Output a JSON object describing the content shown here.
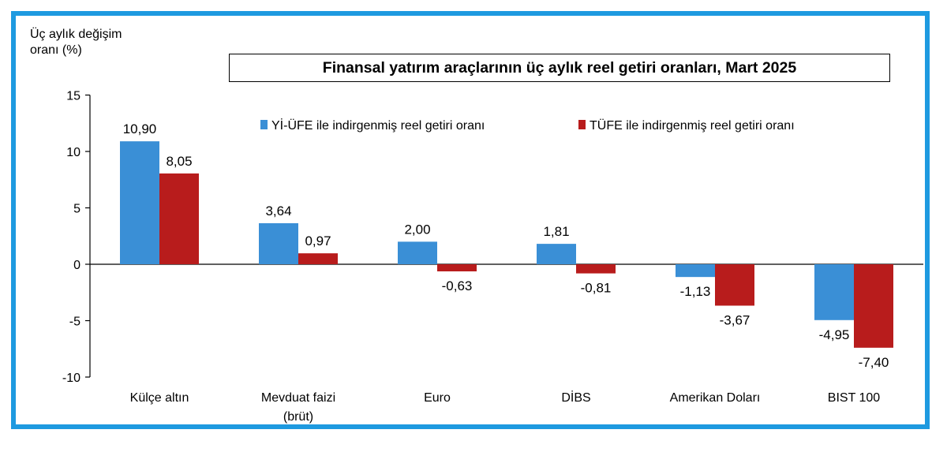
{
  "chart_data": {
    "type": "bar",
    "title": "Finansal yatırım araçlarının üç aylık reel getiri oranları, Mart 2025",
    "ylabel": "Üç aylık değişim\noranı (%)",
    "xlabel": "",
    "ylim": [
      -10,
      15
    ],
    "yticks": [
      15,
      10,
      5,
      0,
      -5,
      -10
    ],
    "grid": false,
    "legend_position": "top",
    "categories": [
      "Külçe altın",
      "Mevduat faizi\n(brüt)",
      "Euro",
      "DİBS",
      "Amerikan Doları",
      "BIST 100"
    ],
    "series": [
      {
        "name": "Yİ-ÜFE ile indirgenmiş reel getiri oranı",
        "color": "#3a8fd6",
        "values": [
          10.9,
          3.64,
          2.0,
          1.81,
          -1.13,
          -4.95
        ],
        "labels": [
          "10,90",
          "3,64",
          "2,00",
          "1,81",
          "-1,13",
          "-4,95"
        ]
      },
      {
        "name": "TÜFE ile indirgenmiş reel getiri oranı",
        "color": "#b81c1c",
        "values": [
          8.05,
          0.97,
          -0.63,
          -0.81,
          -3.67,
          -7.4
        ],
        "labels": [
          "8,05",
          "0,97",
          "-0,63",
          "-0,81",
          "-3,67",
          "-7,40"
        ]
      }
    ]
  }
}
